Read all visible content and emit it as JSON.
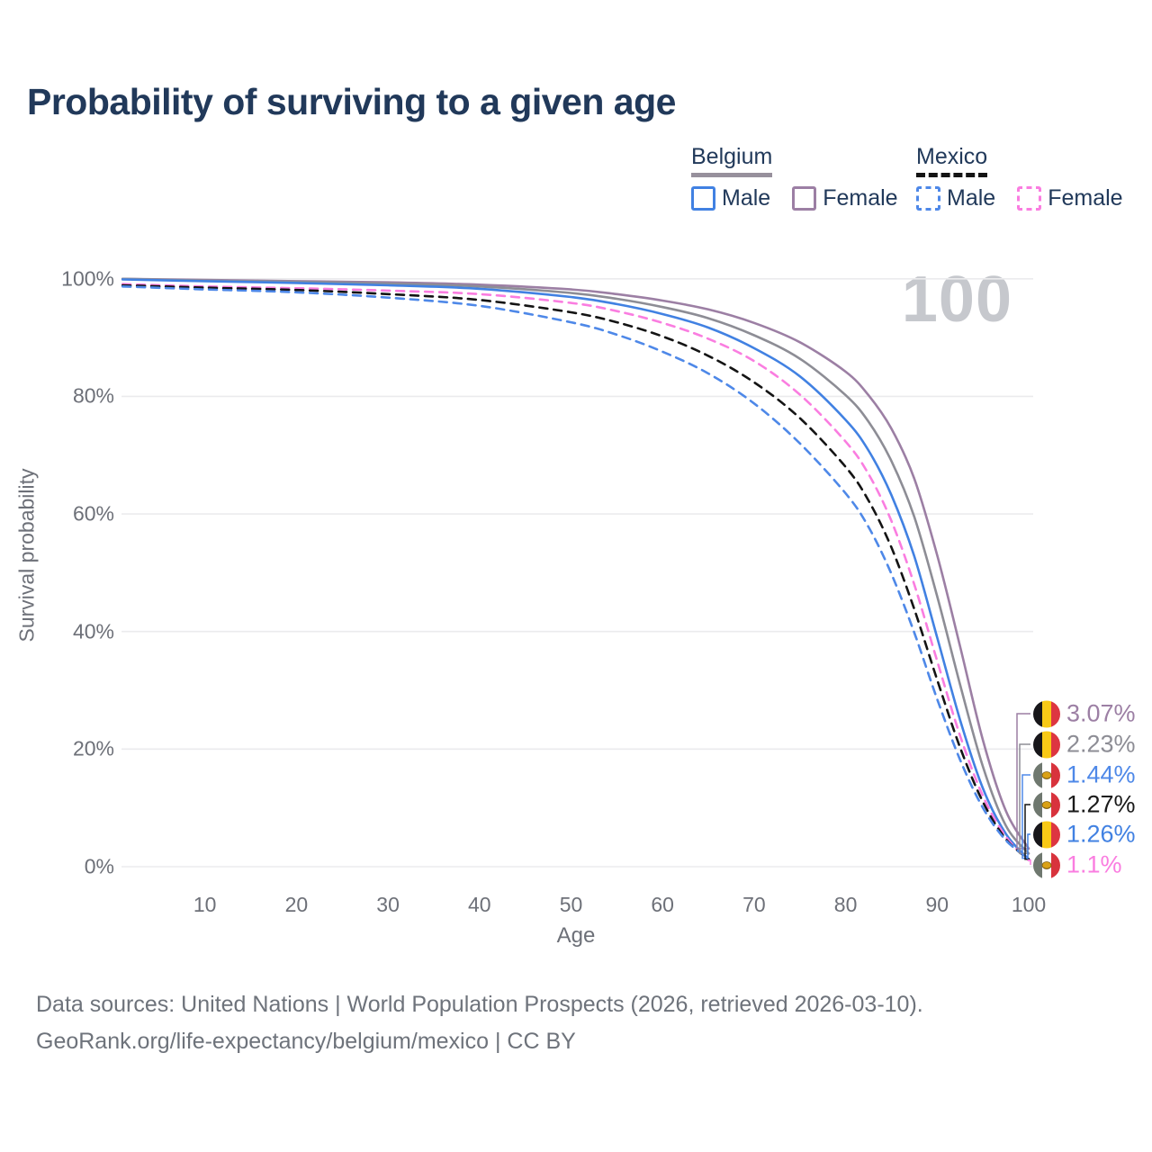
{
  "title": "Probability of surviving to a given age",
  "watermark": "100",
  "legend": {
    "groups": [
      {
        "country": "Belgium",
        "line_style": "solid",
        "underline_color": "#97909c",
        "items": [
          {
            "label": "Male",
            "color": "#4181e2"
          },
          {
            "label": "Female",
            "color": "#9c7fa4"
          }
        ]
      },
      {
        "country": "Mexico",
        "line_style": "dashed",
        "underline_color": "#141414",
        "items": [
          {
            "label": "Male",
            "color": "#4e88e8"
          },
          {
            "label": "Female",
            "color": "#fa7de0"
          }
        ]
      }
    ]
  },
  "chart_data": {
    "type": "line",
    "title": "Probability of surviving to a given age",
    "xlabel": "Age",
    "ylabel": "Survival probability",
    "xlim": [
      1,
      100
    ],
    "ylim": [
      0,
      100
    ],
    "grid": "horizontal",
    "legend_position": "top-right",
    "x_ticks": [
      10,
      20,
      30,
      40,
      50,
      60,
      70,
      80,
      90,
      100
    ],
    "y_ticks": [
      {
        "value": 0,
        "label": "0%"
      },
      {
        "value": 20,
        "label": "20%"
      },
      {
        "value": 40,
        "label": "40%"
      },
      {
        "value": 60,
        "label": "60%"
      },
      {
        "value": 80,
        "label": "80%"
      },
      {
        "value": 100,
        "label": "100%"
      }
    ],
    "x": [
      1,
      10,
      20,
      30,
      40,
      50,
      55,
      60,
      65,
      70,
      75,
      80,
      82.5,
      85,
      87.5,
      90,
      92.5,
      95,
      97.5,
      100
    ],
    "series": [
      {
        "name": "Belgium Female",
        "country": "Belgium",
        "sex": "Female",
        "color": "#9c7fa4",
        "dash": "solid",
        "flag": "be",
        "end_label": "3.07%",
        "values": [
          100,
          99.8,
          99.6,
          99.4,
          99.0,
          98.2,
          97.4,
          96.3,
          94.8,
          92.5,
          89.2,
          84.2,
          80.2,
          74.5,
          66.0,
          53.0,
          37.5,
          21.5,
          9.5,
          3.07
        ]
      },
      {
        "name": "Belgium Both sexes",
        "country": "Belgium",
        "sex": "Both",
        "color": "#8d8d95",
        "dash": "solid",
        "flag": "be",
        "end_label": "2.23%",
        "values": [
          100,
          99.7,
          99.5,
          99.2,
          98.7,
          97.6,
          96.6,
          95.2,
          93.3,
          90.4,
          86.4,
          80.2,
          75.7,
          69.0,
          59.5,
          46.0,
          31.0,
          17.0,
          7.0,
          2.23
        ]
      },
      {
        "name": "Belgium Male",
        "country": "Belgium",
        "sex": "Male",
        "color": "#4181e2",
        "dash": "solid",
        "flag": "be",
        "end_label": "1.26%",
        "values": [
          99.9,
          99.6,
          99.3,
          98.9,
          98.3,
          96.9,
          95.7,
          94.0,
          91.7,
          88.2,
          83.4,
          76.0,
          70.8,
          63.2,
          52.8,
          39.0,
          25.0,
          13.3,
          5.6,
          1.26
        ]
      },
      {
        "name": "Mexico Female",
        "country": "Mexico",
        "sex": "Female",
        "color": "#fa7de0",
        "dash": "dashed",
        "flag": "mx",
        "end_label": "1.1%",
        "values": [
          99.1,
          98.7,
          98.4,
          98.0,
          97.4,
          95.9,
          94.5,
          92.5,
          89.8,
          86.0,
          80.3,
          72.3,
          66.8,
          58.8,
          48.0,
          35.0,
          22.3,
          12.0,
          5.1,
          1.1
        ]
      },
      {
        "name": "Mexico Both sexes",
        "country": "Mexico",
        "sex": "Both",
        "color": "#141414",
        "dash": "dashed",
        "flag": "mx",
        "end_label": "1.27%",
        "values": [
          98.9,
          98.5,
          98.1,
          97.4,
          96.4,
          94.3,
          92.6,
          90.2,
          86.9,
          82.4,
          76.3,
          68.0,
          62.3,
          54.3,
          43.8,
          31.8,
          20.3,
          11.0,
          4.7,
          1.27
        ]
      },
      {
        "name": "Mexico Male",
        "country": "Mexico",
        "sex": "Male",
        "color": "#4e88e8",
        "dash": "dashed",
        "flag": "mx",
        "end_label": "1.44%",
        "values": [
          98.7,
          98.2,
          97.7,
          96.8,
          95.4,
          92.6,
          90.5,
          87.6,
          83.9,
          78.8,
          72.0,
          63.5,
          57.8,
          49.8,
          39.8,
          28.5,
          18.2,
          10.0,
          4.5,
          1.44
        ]
      }
    ]
  },
  "footer": {
    "line1": "Data sources: United Nations | World Population Prospects (2026, retrieved 2026-03-10).",
    "line2": "GeoRank.org/life-expectancy/belgium/mexico | CC BY"
  }
}
